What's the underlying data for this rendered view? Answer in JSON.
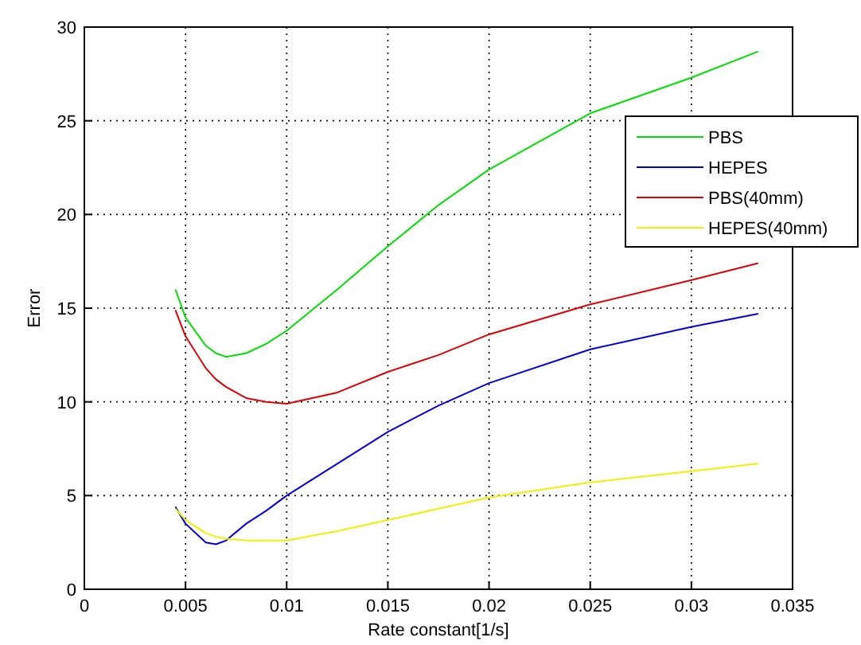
{
  "chart_data": {
    "type": "line",
    "xlabel": "Rate constant[1/s]",
    "ylabel": "Error",
    "x": [
      0.0045,
      0.005,
      0.006,
      0.0065,
      0.007,
      0.008,
      0.009,
      0.01,
      0.0125,
      0.015,
      0.0175,
      0.02,
      0.025,
      0.03,
      0.0333
    ],
    "series": [
      {
        "name": "PBS",
        "color": "#00e000",
        "values": [
          16.0,
          14.5,
          13.0,
          12.6,
          12.4,
          12.6,
          13.1,
          13.8,
          16.0,
          18.3,
          20.5,
          22.4,
          25.4,
          27.3,
          28.7
        ]
      },
      {
        "name": "HEPES",
        "color": "#0000e0",
        "values": [
          4.4,
          3.5,
          2.5,
          2.4,
          2.6,
          3.5,
          4.2,
          5.0,
          6.7,
          8.4,
          9.8,
          11.0,
          12.8,
          14.0,
          14.7
        ]
      },
      {
        "name": "PBS(40mm)",
        "color": "#e00000",
        "values": [
          14.9,
          13.5,
          11.8,
          11.2,
          10.8,
          10.2,
          10.0,
          9.9,
          10.5,
          11.6,
          12.5,
          13.6,
          15.2,
          16.5,
          17.4
        ]
      },
      {
        "name": "HEPES(40mm)",
        "color": "#f0f000",
        "values": [
          4.3,
          3.7,
          3.0,
          2.8,
          2.7,
          2.6,
          2.6,
          2.6,
          3.1,
          3.7,
          4.3,
          4.9,
          5.7,
          6.3,
          6.7
        ]
      }
    ],
    "xlim": [
      0,
      0.035
    ],
    "xticks": [
      0,
      0.005,
      0.01,
      0.015,
      0.02,
      0.025,
      0.03,
      0.035
    ],
    "ylim": [
      0,
      30
    ],
    "yticks": [
      0,
      5,
      10,
      15,
      20,
      25,
      30
    ],
    "grid": true,
    "legend": "right",
    "line_style": "solid"
  }
}
